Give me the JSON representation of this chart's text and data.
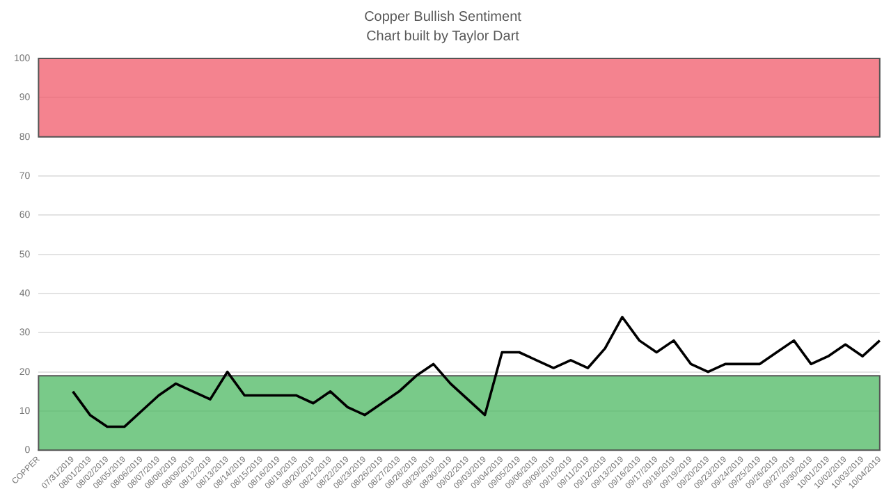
{
  "chart_data": {
    "type": "line",
    "title": "Copper Bullish Sentiment",
    "subtitle": "Chart built by Taylor Dart",
    "categories": [
      "COPPER",
      null,
      "07/31/2019",
      "08/01/2019",
      "08/02/2019",
      "08/05/2019",
      "08/06/2019",
      "08/07/2019",
      "08/08/2019",
      "08/09/2019",
      "08/12/2019",
      "08/13/2019",
      "08/14/2019",
      "08/15/2019",
      "08/16/2019",
      "08/19/2019",
      "08/20/2019",
      "08/21/2019",
      "08/22/2019",
      "08/23/2019",
      "08/26/2019",
      "08/27/2019",
      "08/28/2019",
      "08/29/2019",
      "08/30/2019",
      "09/02/2019",
      "09/03/2019",
      "09/04/2019",
      "09/05/2019",
      "09/06/2019",
      "09/09/2019",
      "09/10/2019",
      "09/11/2019",
      "09/12/2019",
      "09/13/2019",
      "09/16/2019",
      "09/17/2019",
      "09/18/2019",
      "09/19/2019",
      "09/20/2019",
      "09/23/2019",
      "09/24/2019",
      "09/25/2019",
      "09/26/2019",
      "09/27/2019",
      "09/30/2019",
      "10/01/2019",
      "10/02/2019",
      "10/03/2019",
      "10/04/2019"
    ],
    "series": [
      {
        "color": "#000000",
        "values": [
          null,
          null,
          15,
          9,
          6,
          6,
          10,
          14,
          17,
          15,
          13,
          20,
          14,
          14,
          14,
          14,
          12,
          15,
          11,
          9,
          12,
          15,
          19,
          22,
          17,
          13,
          9,
          25,
          25,
          23,
          21,
          23,
          21,
          26,
          34,
          28,
          25,
          28,
          22,
          20,
          22,
          22,
          22,
          25,
          28,
          22,
          24,
          27,
          24,
          28
        ]
      }
    ],
    "ylim": [
      0,
      100
    ],
    "yticks": [
      0,
      10,
      20,
      30,
      40,
      50,
      60,
      70,
      80,
      90,
      100
    ],
    "bands": [
      {
        "axis": "y",
        "from": 0,
        "to": 19,
        "color": "#4cb862"
      },
      {
        "axis": "y",
        "from": 80,
        "to": 100,
        "color": "#f05a6a"
      }
    ],
    "grid": "y",
    "legend": false,
    "marker": "none",
    "line_style": "solid"
  }
}
